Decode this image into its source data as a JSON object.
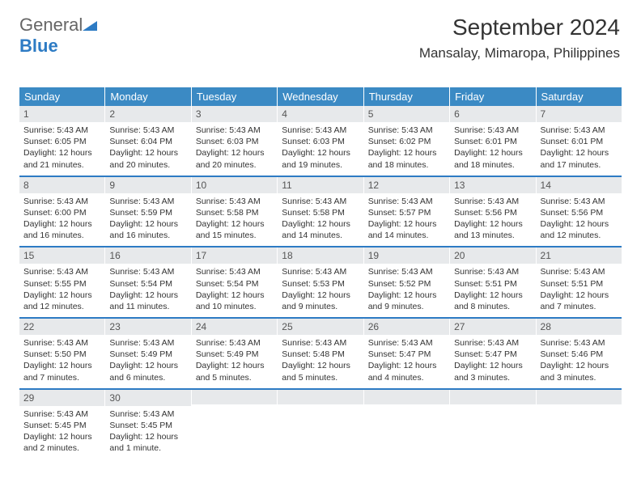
{
  "logo": {
    "text_general": "General",
    "text_blue": "Blue"
  },
  "header": {
    "title": "September 2024",
    "subtitle": "Mansalay, Mimaropa, Philippines"
  },
  "colors": {
    "header_bg": "#3b8ac4",
    "week_border": "#2d7bc4",
    "daynum_bg": "#e7e9eb",
    "page_bg": "#ffffff"
  },
  "calendar": {
    "days_of_week": [
      "Sunday",
      "Monday",
      "Tuesday",
      "Wednesday",
      "Thursday",
      "Friday",
      "Saturday"
    ],
    "weeks": [
      [
        {
          "n": "1",
          "sunrise": "Sunrise: 5:43 AM",
          "sunset": "Sunset: 6:05 PM",
          "day1": "Daylight: 12 hours",
          "day2": "and 21 minutes."
        },
        {
          "n": "2",
          "sunrise": "Sunrise: 5:43 AM",
          "sunset": "Sunset: 6:04 PM",
          "day1": "Daylight: 12 hours",
          "day2": "and 20 minutes."
        },
        {
          "n": "3",
          "sunrise": "Sunrise: 5:43 AM",
          "sunset": "Sunset: 6:03 PM",
          "day1": "Daylight: 12 hours",
          "day2": "and 20 minutes."
        },
        {
          "n": "4",
          "sunrise": "Sunrise: 5:43 AM",
          "sunset": "Sunset: 6:03 PM",
          "day1": "Daylight: 12 hours",
          "day2": "and 19 minutes."
        },
        {
          "n": "5",
          "sunrise": "Sunrise: 5:43 AM",
          "sunset": "Sunset: 6:02 PM",
          "day1": "Daylight: 12 hours",
          "day2": "and 18 minutes."
        },
        {
          "n": "6",
          "sunrise": "Sunrise: 5:43 AM",
          "sunset": "Sunset: 6:01 PM",
          "day1": "Daylight: 12 hours",
          "day2": "and 18 minutes."
        },
        {
          "n": "7",
          "sunrise": "Sunrise: 5:43 AM",
          "sunset": "Sunset: 6:01 PM",
          "day1": "Daylight: 12 hours",
          "day2": "and 17 minutes."
        }
      ],
      [
        {
          "n": "8",
          "sunrise": "Sunrise: 5:43 AM",
          "sunset": "Sunset: 6:00 PM",
          "day1": "Daylight: 12 hours",
          "day2": "and 16 minutes."
        },
        {
          "n": "9",
          "sunrise": "Sunrise: 5:43 AM",
          "sunset": "Sunset: 5:59 PM",
          "day1": "Daylight: 12 hours",
          "day2": "and 16 minutes."
        },
        {
          "n": "10",
          "sunrise": "Sunrise: 5:43 AM",
          "sunset": "Sunset: 5:58 PM",
          "day1": "Daylight: 12 hours",
          "day2": "and 15 minutes."
        },
        {
          "n": "11",
          "sunrise": "Sunrise: 5:43 AM",
          "sunset": "Sunset: 5:58 PM",
          "day1": "Daylight: 12 hours",
          "day2": "and 14 minutes."
        },
        {
          "n": "12",
          "sunrise": "Sunrise: 5:43 AM",
          "sunset": "Sunset: 5:57 PM",
          "day1": "Daylight: 12 hours",
          "day2": "and 14 minutes."
        },
        {
          "n": "13",
          "sunrise": "Sunrise: 5:43 AM",
          "sunset": "Sunset: 5:56 PM",
          "day1": "Daylight: 12 hours",
          "day2": "and 13 minutes."
        },
        {
          "n": "14",
          "sunrise": "Sunrise: 5:43 AM",
          "sunset": "Sunset: 5:56 PM",
          "day1": "Daylight: 12 hours",
          "day2": "and 12 minutes."
        }
      ],
      [
        {
          "n": "15",
          "sunrise": "Sunrise: 5:43 AM",
          "sunset": "Sunset: 5:55 PM",
          "day1": "Daylight: 12 hours",
          "day2": "and 12 minutes."
        },
        {
          "n": "16",
          "sunrise": "Sunrise: 5:43 AM",
          "sunset": "Sunset: 5:54 PM",
          "day1": "Daylight: 12 hours",
          "day2": "and 11 minutes."
        },
        {
          "n": "17",
          "sunrise": "Sunrise: 5:43 AM",
          "sunset": "Sunset: 5:54 PM",
          "day1": "Daylight: 12 hours",
          "day2": "and 10 minutes."
        },
        {
          "n": "18",
          "sunrise": "Sunrise: 5:43 AM",
          "sunset": "Sunset: 5:53 PM",
          "day1": "Daylight: 12 hours",
          "day2": "and 9 minutes."
        },
        {
          "n": "19",
          "sunrise": "Sunrise: 5:43 AM",
          "sunset": "Sunset: 5:52 PM",
          "day1": "Daylight: 12 hours",
          "day2": "and 9 minutes."
        },
        {
          "n": "20",
          "sunrise": "Sunrise: 5:43 AM",
          "sunset": "Sunset: 5:51 PM",
          "day1": "Daylight: 12 hours",
          "day2": "and 8 minutes."
        },
        {
          "n": "21",
          "sunrise": "Sunrise: 5:43 AM",
          "sunset": "Sunset: 5:51 PM",
          "day1": "Daylight: 12 hours",
          "day2": "and 7 minutes."
        }
      ],
      [
        {
          "n": "22",
          "sunrise": "Sunrise: 5:43 AM",
          "sunset": "Sunset: 5:50 PM",
          "day1": "Daylight: 12 hours",
          "day2": "and 7 minutes."
        },
        {
          "n": "23",
          "sunrise": "Sunrise: 5:43 AM",
          "sunset": "Sunset: 5:49 PM",
          "day1": "Daylight: 12 hours",
          "day2": "and 6 minutes."
        },
        {
          "n": "24",
          "sunrise": "Sunrise: 5:43 AM",
          "sunset": "Sunset: 5:49 PM",
          "day1": "Daylight: 12 hours",
          "day2": "and 5 minutes."
        },
        {
          "n": "25",
          "sunrise": "Sunrise: 5:43 AM",
          "sunset": "Sunset: 5:48 PM",
          "day1": "Daylight: 12 hours",
          "day2": "and 5 minutes."
        },
        {
          "n": "26",
          "sunrise": "Sunrise: 5:43 AM",
          "sunset": "Sunset: 5:47 PM",
          "day1": "Daylight: 12 hours",
          "day2": "and 4 minutes."
        },
        {
          "n": "27",
          "sunrise": "Sunrise: 5:43 AM",
          "sunset": "Sunset: 5:47 PM",
          "day1": "Daylight: 12 hours",
          "day2": "and 3 minutes."
        },
        {
          "n": "28",
          "sunrise": "Sunrise: 5:43 AM",
          "sunset": "Sunset: 5:46 PM",
          "day1": "Daylight: 12 hours",
          "day2": "and 3 minutes."
        }
      ],
      [
        {
          "n": "29",
          "sunrise": "Sunrise: 5:43 AM",
          "sunset": "Sunset: 5:45 PM",
          "day1": "Daylight: 12 hours",
          "day2": "and 2 minutes."
        },
        {
          "n": "30",
          "sunrise": "Sunrise: 5:43 AM",
          "sunset": "Sunset: 5:45 PM",
          "day1": "Daylight: 12 hours",
          "day2": "and 1 minute."
        },
        {
          "empty": true
        },
        {
          "empty": true
        },
        {
          "empty": true
        },
        {
          "empty": true
        },
        {
          "empty": true
        }
      ]
    ]
  }
}
